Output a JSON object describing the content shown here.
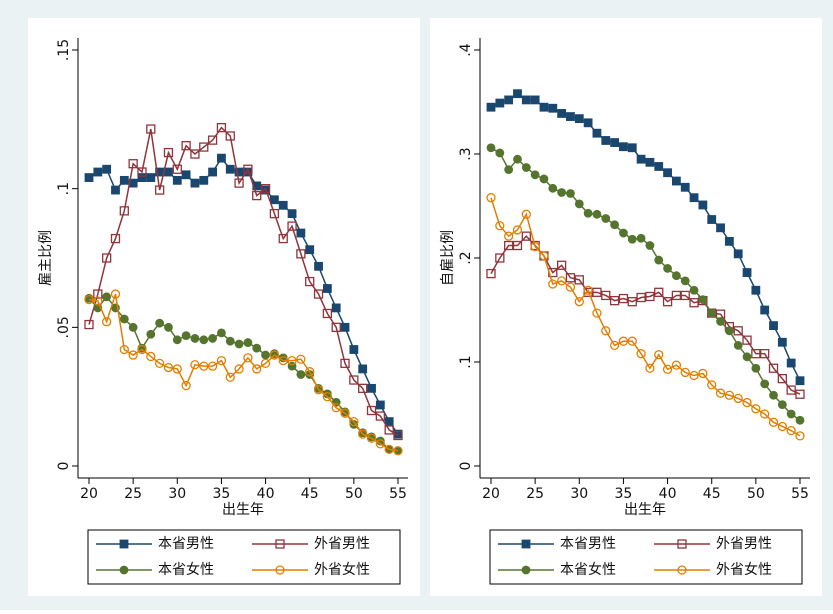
{
  "chart_data": [
    {
      "type": "line",
      "ylabel": "雇主比例",
      "xlabel": "出生年",
      "x": [
        20,
        21,
        22,
        23,
        24,
        25,
        26,
        27,
        28,
        29,
        30,
        31,
        32,
        33,
        34,
        35,
        36,
        37,
        38,
        39,
        40,
        41,
        42,
        43,
        44,
        45,
        46,
        47,
        48,
        49,
        50,
        51,
        52,
        53,
        54,
        55
      ],
      "xlim": [
        20,
        55
      ],
      "xticks": [
        20,
        25,
        30,
        35,
        40,
        45,
        50,
        55
      ],
      "ylim": [
        0,
        0.15
      ],
      "yticks": [
        0,
        {
          "value": 0.05,
          "label": ".05"
        },
        {
          "value": 0.1,
          "label": ".1"
        },
        {
          "value": 0.15,
          "label": ".15"
        }
      ],
      "legend": "bottom",
      "series": [
        {
          "name": "本省男性",
          "color": "#1a476f",
          "marker": "square",
          "values": [
            0.104,
            0.106,
            0.107,
            0.0995,
            0.103,
            0.102,
            0.104,
            0.104,
            0.106,
            0.106,
            0.103,
            0.105,
            0.102,
            0.103,
            0.106,
            0.111,
            0.107,
            0.106,
            0.106,
            0.101,
            0.0995,
            0.096,
            0.094,
            0.091,
            0.084,
            0.078,
            0.072,
            0.064,
            0.057,
            0.05,
            0.042,
            0.035,
            0.028,
            0.022,
            0.016,
            0.0115
          ]
        },
        {
          "name": "外省男性",
          "color": "#90353b",
          "marker": "hollow-square",
          "values": [
            0.051,
            0.062,
            0.075,
            0.082,
            0.092,
            0.109,
            0.106,
            0.1215,
            0.0995,
            0.113,
            0.107,
            0.1155,
            0.1125,
            0.115,
            0.1175,
            0.122,
            0.119,
            0.102,
            0.107,
            0.0975,
            0.1,
            0.091,
            0.082,
            0.0865,
            0.0765,
            0.0665,
            0.062,
            0.055,
            0.05,
            0.037,
            0.031,
            0.028,
            0.02,
            0.018,
            0.013,
            0.011
          ]
        },
        {
          "name": "本省女性",
          "color": "#55752f",
          "marker": "circle",
          "values": [
            0.0605,
            0.057,
            0.061,
            0.057,
            0.053,
            0.05,
            0.0425,
            0.0475,
            0.0515,
            0.05,
            0.0455,
            0.047,
            0.046,
            0.0455,
            0.046,
            0.048,
            0.045,
            0.044,
            0.0445,
            0.0425,
            0.04,
            0.0405,
            0.039,
            0.036,
            0.033,
            0.033,
            0.028,
            0.026,
            0.023,
            0.0195,
            0.015,
            0.012,
            0.0105,
            0.009,
            0.006,
            0.0055
          ]
        },
        {
          "name": "外省女性",
          "color": "#e37e00",
          "marker": "hollow-circle",
          "values": [
            0.06,
            0.0595,
            0.052,
            0.062,
            0.042,
            0.04,
            0.042,
            0.0395,
            0.037,
            0.0355,
            0.035,
            0.029,
            0.0365,
            0.036,
            0.036,
            0.038,
            0.032,
            0.035,
            0.039,
            0.035,
            0.037,
            0.04,
            0.038,
            0.038,
            0.0385,
            0.034,
            0.0275,
            0.025,
            0.021,
            0.019,
            0.016,
            0.0115,
            0.01,
            0.008,
            0.006,
            0.0055
          ]
        }
      ]
    },
    {
      "type": "line",
      "ylabel": "自雇比例",
      "xlabel": "出生年",
      "x": [
        20,
        21,
        22,
        23,
        24,
        25,
        26,
        27,
        28,
        29,
        30,
        31,
        32,
        33,
        34,
        35,
        36,
        37,
        38,
        39,
        40,
        41,
        42,
        43,
        44,
        45,
        46,
        47,
        48,
        49,
        50,
        51,
        52,
        53,
        54,
        55
      ],
      "xlim": [
        20,
        55
      ],
      "xticks": [
        20,
        25,
        30,
        35,
        40,
        45,
        50,
        55
      ],
      "ylim": [
        0,
        0.4
      ],
      "yticks": [
        0,
        {
          "value": 0.1,
          "label": ".1"
        },
        {
          "value": 0.2,
          "label": ".2"
        },
        {
          "value": 0.3,
          "label": ".3"
        },
        {
          "value": 0.4,
          "label": ".4"
        }
      ],
      "legend": "bottom",
      "series": [
        {
          "name": "本省男性",
          "color": "#1a476f",
          "marker": "square",
          "values": [
            0.345,
            0.349,
            0.352,
            0.358,
            0.352,
            0.352,
            0.345,
            0.344,
            0.339,
            0.336,
            0.334,
            0.33,
            0.32,
            0.313,
            0.311,
            0.307,
            0.306,
            0.295,
            0.292,
            0.288,
            0.282,
            0.274,
            0.268,
            0.258,
            0.251,
            0.237,
            0.229,
            0.216,
            0.204,
            0.186,
            0.169,
            0.15,
            0.135,
            0.119,
            0.099,
            0.082
          ]
        },
        {
          "name": "外省男性",
          "color": "#90353b",
          "marker": "hollow-square",
          "values": [
            0.185,
            0.2,
            0.212,
            0.212,
            0.221,
            0.212,
            0.202,
            0.186,
            0.193,
            0.181,
            0.179,
            0.167,
            0.167,
            0.164,
            0.159,
            0.161,
            0.158,
            0.162,
            0.163,
            0.167,
            0.158,
            0.164,
            0.164,
            0.157,
            0.159,
            0.147,
            0.146,
            0.134,
            0.13,
            0.121,
            0.108,
            0.108,
            0.094,
            0.084,
            0.073,
            0.069
          ]
        },
        {
          "name": "本省女性",
          "color": "#55752f",
          "marker": "circle",
          "values": [
            0.306,
            0.301,
            0.285,
            0.295,
            0.287,
            0.28,
            0.276,
            0.267,
            0.263,
            0.262,
            0.252,
            0.243,
            0.242,
            0.238,
            0.232,
            0.224,
            0.218,
            0.219,
            0.212,
            0.198,
            0.19,
            0.183,
            0.178,
            0.169,
            0.16,
            0.147,
            0.139,
            0.13,
            0.116,
            0.105,
            0.094,
            0.079,
            0.068,
            0.059,
            0.05,
            0.044
          ]
        },
        {
          "name": "外省女性",
          "color": "#e37e00",
          "marker": "hollow-circle",
          "values": [
            0.258,
            0.231,
            0.221,
            0.227,
            0.242,
            0.211,
            0.202,
            0.175,
            0.178,
            0.172,
            0.158,
            0.169,
            0.147,
            0.13,
            0.116,
            0.12,
            0.12,
            0.108,
            0.094,
            0.107,
            0.093,
            0.097,
            0.09,
            0.087,
            0.089,
            0.078,
            0.07,
            0.068,
            0.065,
            0.061,
            0.055,
            0.05,
            0.042,
            0.038,
            0.034,
            0.029
          ]
        }
      ]
    }
  ]
}
